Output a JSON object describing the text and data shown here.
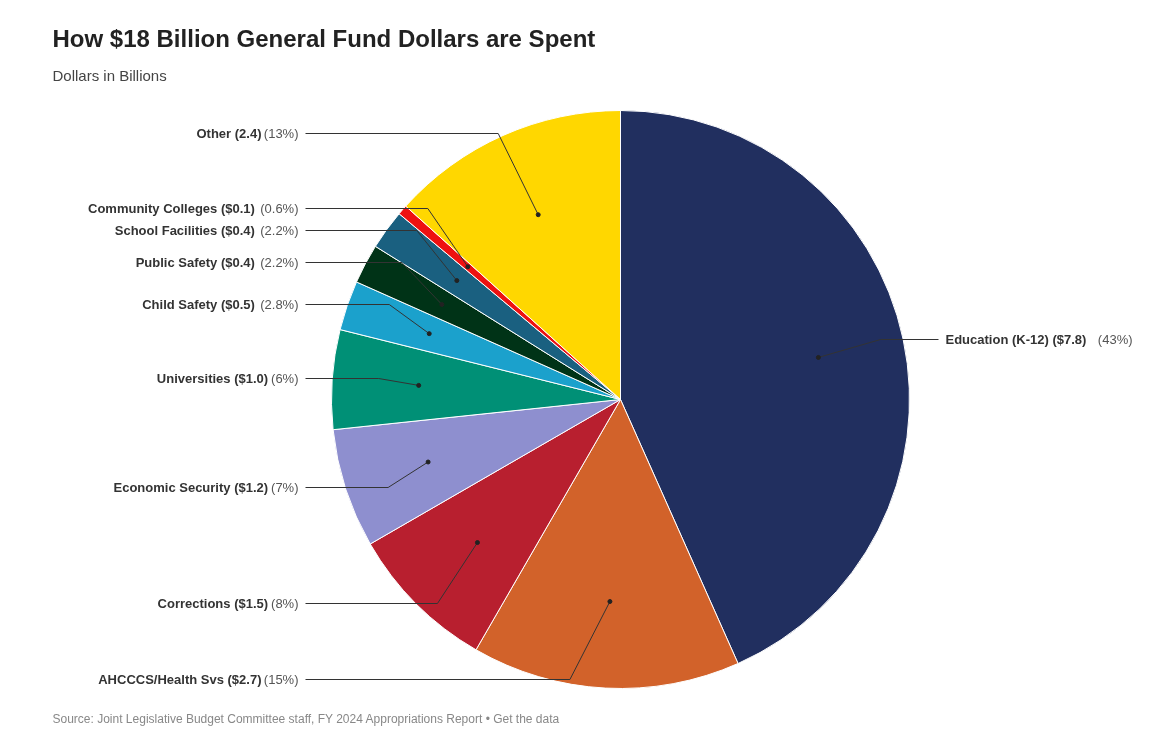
{
  "chart_data": {
    "type": "pie",
    "title": "How $18 Billion General Fund Dollars are Spent",
    "subtitle": "Dollars in Billions",
    "categories": [
      "Education (K-12) ($7.8) (43%)",
      "AHCCCS/Health Svs ($2.7) (15%)",
      "Corrections ($1.5) (8%)",
      "Economic Security ($1.2) (7%)",
      "Universities ($1.0) (6%)",
      "Child Safety ($0.5) (2.8%)",
      "Public Safety ($0.4) (2.2%)",
      "School Facilities ($0.4) (2.2%)",
      "Community Colleges ($0.1) (0.6%)",
      "Other (2.4) (13%)"
    ],
    "values": [
      7.8,
      2.7,
      1.5,
      1.2,
      1.0,
      0.5,
      0.4,
      0.4,
      0.1,
      2.4
    ],
    "colors": [
      "#212f5f",
      "#d2622a",
      "#b81f2f",
      "#8e8fcf",
      "#009076",
      "#1ba1cc",
      "#003317",
      "#1a6080",
      "#ee1111",
      "#ffd700"
    ],
    "annotations": [
      "Source: Joint Legislative Budget Committee staff, FY 2024 Appropriations Report • Get the data"
    ]
  }
}
